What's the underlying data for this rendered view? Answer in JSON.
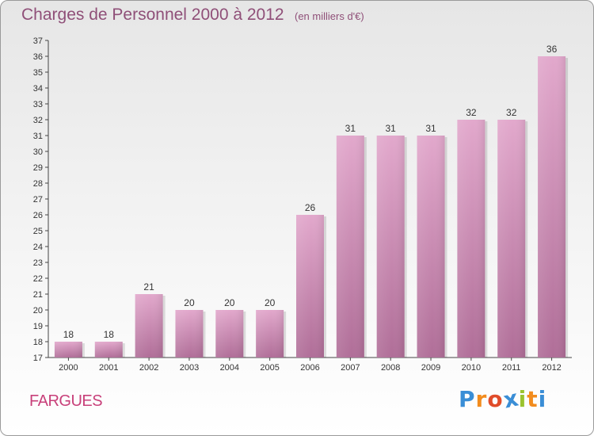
{
  "chart_data": {
    "type": "bar",
    "title": "Charges de Personnel 2000 à 2012",
    "subtitle": "(en milliers d'€)",
    "categories": [
      "2000",
      "2001",
      "2002",
      "2003",
      "2004",
      "2005",
      "2006",
      "2007",
      "2008",
      "2009",
      "2010",
      "2011",
      "2012"
    ],
    "values": [
      18,
      18,
      21,
      20,
      20,
      20,
      26,
      31,
      31,
      31,
      32,
      32,
      36
    ],
    "ylim": [
      17,
      37
    ],
    "yticks": [
      17,
      18,
      19,
      20,
      21,
      22,
      23,
      24,
      25,
      26,
      27,
      28,
      29,
      30,
      31,
      32,
      33,
      34,
      35,
      36,
      37
    ],
    "grid": false,
    "bar_color": "#d792bd"
  },
  "place_name": "FARGUES",
  "brand": {
    "letters": [
      "P",
      "r",
      "o",
      "x",
      "i",
      "t",
      "i"
    ],
    "colors": [
      "#3a8ed6",
      "#f28c1e",
      "#e04c2a",
      "#3a8ed6",
      "#9bc32e",
      "#f28c1e",
      "#3a8ed6"
    ]
  }
}
